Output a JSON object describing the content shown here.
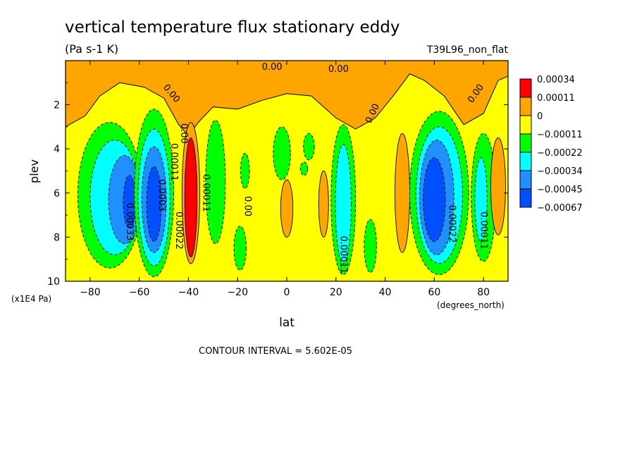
{
  "header": {
    "title": "vertical temperature flux stationary eddy",
    "units": "(Pa s-1 K)",
    "dataset": "T39L96_non_flat"
  },
  "footer": {
    "contour_interval": "CONTOUR INTERVAL = 5.602E-05"
  },
  "chart_data": {
    "type": "heatmap",
    "title": "vertical temperature flux stationary eddy",
    "subtitle": "(Pa s-1 K)",
    "dataset_label": "T39L96_non_flat",
    "xlabel": "lat",
    "x_units": "(degrees_north)",
    "ylabel": "plev",
    "y_units": "(x1E4 Pa)",
    "xlim": [
      -90,
      90
    ],
    "ylim": [
      10,
      0
    ],
    "x_ticks": [
      -80,
      -60,
      -40,
      -20,
      0,
      20,
      40,
      60,
      80
    ],
    "x_tick_labels": [
      "−80",
      "−60",
      "−40",
      "−20",
      "0",
      "20",
      "40",
      "60",
      "80"
    ],
    "y_ticks": [
      2,
      4,
      6,
      8,
      10
    ],
    "y_tick_labels": [
      "2",
      "4",
      "6",
      "8",
      "10"
    ],
    "contour_interval": 5.602e-05,
    "colorbar": {
      "levels": [
        "0.00034",
        "0.00011",
        "0",
        "−0.00011",
        "−0.00022",
        "−0.00034",
        "−0.00045",
        "−0.00067"
      ],
      "colors": [
        "#ff0000",
        "#ffa500",
        "#ffff00",
        "#00ff00",
        "#00ffff",
        "#1e90ff",
        "#0050ff"
      ]
    },
    "regions": [
      {
        "type": "ellipse",
        "lat": -72,
        "plev": 6.1,
        "rlat": 13,
        "rplev": 3.3,
        "level": 1
      },
      {
        "type": "ellipse",
        "lat": -70,
        "plev": 6.2,
        "rlat": 10,
        "rplev": 2.6,
        "level": 2
      },
      {
        "type": "ellipse",
        "lat": -66,
        "plev": 6.3,
        "rlat": 6.5,
        "rplev": 2.0,
        "level": 3
      },
      {
        "type": "ellipse",
        "lat": -64,
        "plev": 6.4,
        "rlat": 2.5,
        "rplev": 1.2,
        "level": 4
      },
      {
        "type": "ellipse",
        "lat": -54,
        "plev": 6.0,
        "rlat": 8,
        "rplev": 3.8,
        "level": 1
      },
      {
        "type": "ellipse",
        "lat": -54,
        "plev": 6.2,
        "rlat": 6.5,
        "rplev": 3.1,
        "level": 2
      },
      {
        "type": "ellipse",
        "lat": -54,
        "plev": 6.3,
        "rlat": 5,
        "rplev": 2.4,
        "level": 3
      },
      {
        "type": "ellipse",
        "lat": -54,
        "plev": 6.5,
        "rlat": 3,
        "rplev": 1.7,
        "level": 4
      },
      {
        "type": "ellipse",
        "lat": -39,
        "plev": 6.0,
        "rlat": 3.6,
        "rplev": 3.2,
        "level": -1
      },
      {
        "type": "ellipse",
        "lat": -39,
        "plev": 6.2,
        "rlat": 2.5,
        "rplev": 2.7,
        "level": -2
      },
      {
        "type": "ellipse",
        "lat": -29,
        "plev": 5.5,
        "rlat": 4,
        "rplev": 2.8,
        "level": 1
      },
      {
        "type": "ellipse",
        "lat": -19,
        "plev": 8.5,
        "rlat": 2.5,
        "rplev": 1.0,
        "level": 1
      },
      {
        "type": "ellipse",
        "lat": -17,
        "plev": 5.0,
        "rlat": 1.8,
        "rplev": 0.8,
        "level": 1
      },
      {
        "type": "ellipse",
        "lat": -2,
        "plev": 4.2,
        "rlat": 3.5,
        "rplev": 1.2,
        "level": 1
      },
      {
        "type": "ellipse",
        "lat": 0,
        "plev": 6.7,
        "rlat": 2.5,
        "rplev": 1.3,
        "level": -1
      },
      {
        "type": "ellipse",
        "lat": 9,
        "plev": 3.9,
        "rlat": 2.2,
        "rplev": 0.6,
        "level": 1
      },
      {
        "type": "ellipse",
        "lat": 7,
        "plev": 4.9,
        "rlat": 1.5,
        "rplev": 0.3,
        "level": 1
      },
      {
        "type": "ellipse",
        "lat": 15,
        "plev": 6.5,
        "rlat": 2,
        "rplev": 1.5,
        "level": -1
      },
      {
        "type": "ellipse",
        "lat": 23,
        "plev": 6.3,
        "rlat": 5,
        "rplev": 3.4,
        "level": 1
      },
      {
        "type": "ellipse",
        "lat": 23,
        "plev": 6.5,
        "rlat": 3.2,
        "rplev": 2.7,
        "level": 2
      },
      {
        "type": "ellipse",
        "lat": 34,
        "plev": 8.4,
        "rlat": 2.5,
        "rplev": 1.2,
        "level": 1
      },
      {
        "type": "ellipse",
        "lat": 47,
        "plev": 6.0,
        "rlat": 3,
        "rplev": 2.7,
        "level": -1
      },
      {
        "type": "ellipse",
        "lat": 62,
        "plev": 6.0,
        "rlat": 12,
        "rplev": 3.7,
        "level": 1
      },
      {
        "type": "ellipse",
        "lat": 62,
        "plev": 6.1,
        "rlat": 9.5,
        "rplev": 3.1,
        "level": 2
      },
      {
        "type": "ellipse",
        "lat": 61,
        "plev": 6.2,
        "rlat": 7,
        "rplev": 2.6,
        "level": 3
      },
      {
        "type": "ellipse",
        "lat": 60,
        "plev": 6.3,
        "rlat": 4.5,
        "rplev": 1.9,
        "level": 4
      },
      {
        "type": "ellipse",
        "lat": 80,
        "plev": 6.2,
        "rlat": 5,
        "rplev": 2.9,
        "level": 1
      },
      {
        "type": "ellipse",
        "lat": 79,
        "plev": 6.3,
        "rlat": 2.5,
        "rplev": 1.9,
        "level": 2
      },
      {
        "type": "ellipse",
        "lat": 86,
        "plev": 5.7,
        "rlat": 3,
        "rplev": 2.2,
        "level": -1
      }
    ],
    "top_band": {
      "level": -1,
      "bottom_boundary": [
        {
          "lat": -90,
          "plev": 3.0
        },
        {
          "lat": -82,
          "plev": 2.5
        },
        {
          "lat": -76,
          "plev": 1.6
        },
        {
          "lat": -68,
          "plev": 1.0
        },
        {
          "lat": -58,
          "plev": 1.2
        },
        {
          "lat": -50,
          "plev": 1.7
        },
        {
          "lat": -44,
          "plev": 2.9
        },
        {
          "lat": -40,
          "plev": 3.4
        },
        {
          "lat": -36,
          "plev": 2.8
        },
        {
          "lat": -30,
          "plev": 2.1
        },
        {
          "lat": -20,
          "plev": 2.2
        },
        {
          "lat": -10,
          "plev": 1.8
        },
        {
          "lat": 0,
          "plev": 1.5
        },
        {
          "lat": 10,
          "plev": 1.6
        },
        {
          "lat": 20,
          "plev": 2.6
        },
        {
          "lat": 28,
          "plev": 3.1
        },
        {
          "lat": 36,
          "plev": 2.6
        },
        {
          "lat": 44,
          "plev": 1.5
        },
        {
          "lat": 50,
          "plev": 0.6
        },
        {
          "lat": 56,
          "plev": 0.9
        },
        {
          "lat": 64,
          "plev": 1.6
        },
        {
          "lat": 72,
          "plev": 2.9
        },
        {
          "lat": 80,
          "plev": 2.4
        },
        {
          "lat": 86,
          "plev": 0.9
        },
        {
          "lat": 90,
          "plev": 0.7
        }
      ]
    },
    "contour_labels": [
      {
        "text": "0.00",
        "lat": -47,
        "plev": 1.5,
        "angle": 50
      },
      {
        "text": "0.00",
        "lat": -6,
        "plev": 0.3,
        "angle": 0
      },
      {
        "text": "0.00",
        "lat": 21,
        "plev": 0.4,
        "angle": 0
      },
      {
        "text": "0.00",
        "lat": 35,
        "plev": 2.4,
        "angle": -65
      },
      {
        "text": "0.00",
        "lat": 77,
        "plev": 1.5,
        "angle": -55
      },
      {
        "text": "0.00",
        "lat": -42,
        "plev": 3.3,
        "angle": 90
      },
      {
        "text": "0.00",
        "lat": -16,
        "plev": 6.6,
        "angle": 90
      },
      {
        "text": "0.00011",
        "lat": -46,
        "plev": 4.6,
        "angle": 90
      },
      {
        "text": "0.0003",
        "lat": -51,
        "plev": 6.1,
        "angle": 90
      },
      {
        "text": "0.00033",
        "lat": -64,
        "plev": 7.3,
        "angle": 90
      },
      {
        "text": "0.00022",
        "lat": -44,
        "plev": 7.7,
        "angle": 90
      },
      {
        "text": "0.00011",
        "lat": -33,
        "plev": 6.0,
        "angle": 90
      },
      {
        "text": "0.00011",
        "lat": 23,
        "plev": 8.8,
        "angle": 90
      },
      {
        "text": "0.00022",
        "lat": 67,
        "plev": 7.4,
        "angle": 90
      },
      {
        "text": "0.00011",
        "lat": 80,
        "plev": 7.7,
        "angle": 90
      }
    ]
  }
}
